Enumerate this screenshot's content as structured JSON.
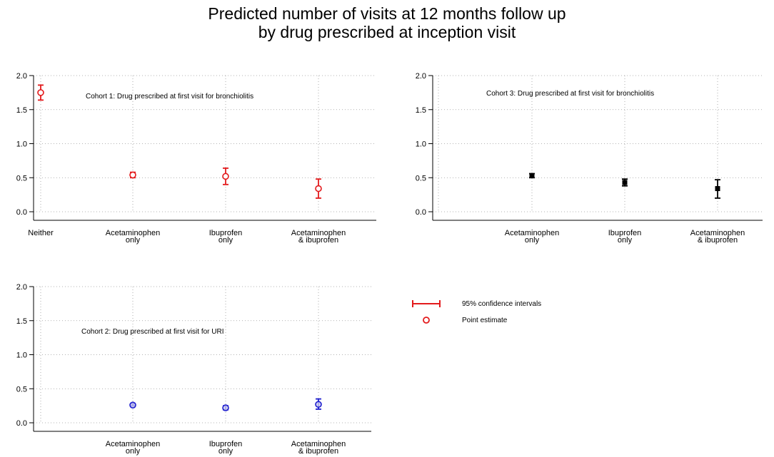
{
  "title_lines": [
    "Predicted number of visits at 12 months follow up",
    "by drug prescribed at inception visit"
  ],
  "chart_data": [
    {
      "type": "scatter",
      "panel_label": "Cohort 1: Drug prescribed at first visit for bronchiolitis",
      "categories": [
        "Neither",
        "Acetaminophen\nonly",
        "Ibuprofen\nonly",
        "Acetaminophen\n& ibuprofen"
      ],
      "point_estimates": [
        1.75,
        0.54,
        0.52,
        0.34
      ],
      "ci_lower": [
        1.64,
        0.5,
        0.4,
        0.2
      ],
      "ci_upper": [
        1.86,
        0.58,
        0.64,
        0.48
      ],
      "ylim": [
        0,
        2
      ],
      "yticks": [
        "0.0",
        "0.5",
        "1.0",
        "1.5",
        "2.0"
      ],
      "marker": "hollow-circle",
      "color": "#e31a1c",
      "grid": true
    },
    {
      "type": "scatter",
      "panel_label": "Cohort 3: Drug prescribed at first visit for bronchiolitis",
      "categories": [
        "",
        "Acetaminophen\nonly",
        "Ibuprofen\nonly",
        "Acetaminophen\n& ibuprofen"
      ],
      "point_estimates": [
        null,
        0.53,
        0.43,
        0.34
      ],
      "ci_lower": [
        null,
        0.5,
        0.38,
        0.2
      ],
      "ci_upper": [
        null,
        0.56,
        0.48,
        0.47
      ],
      "ylim": [
        0,
        2
      ],
      "yticks": [
        "0.0",
        "0.5",
        "1.0",
        "1.5",
        "2.0"
      ],
      "marker": "filled-square",
      "color": "#000000",
      "grid": true
    },
    {
      "type": "scatter",
      "panel_label": "Cohort 2: Drug prescribed at first visit for URI",
      "categories": [
        "",
        "Acetaminophen\nonly",
        "Ibuprofen\nonly",
        "Acetaminophen\n& ibuprofen"
      ],
      "point_estimates": [
        null,
        0.26,
        0.22,
        0.27
      ],
      "ci_lower": [
        null,
        0.25,
        0.19,
        0.2
      ],
      "ci_upper": [
        null,
        0.28,
        0.25,
        0.35
      ],
      "ylim": [
        0,
        2
      ],
      "yticks": [
        "0.0",
        "0.5",
        "1.0",
        "1.5",
        "2.0"
      ],
      "marker": "hollow-circle",
      "color": "#1f1fcf",
      "marker_fill": "#c9c9ee",
      "grid": true
    }
  ],
  "legend": {
    "items": [
      {
        "label": "95% confidence intervals",
        "symbol": "ci-bar",
        "color": "#e31a1c"
      },
      {
        "label": "Point estimate",
        "symbol": "hollow-circle",
        "color": "#e31a1c"
      }
    ]
  }
}
